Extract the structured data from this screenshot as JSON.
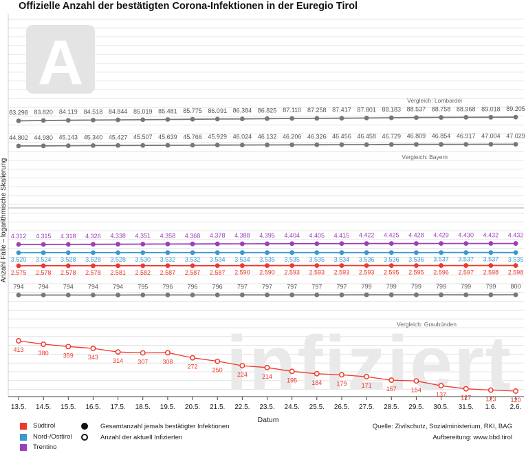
{
  "title": "Offizielle Anzahl der bestätigten Corona-Infektionen in der Euregio Tirol",
  "watermark_text": "infiziert",
  "logo_letter": "A",
  "legend": {
    "regions": [
      {
        "label": "Südtirol",
        "color": "#f0372c"
      },
      {
        "label": "Nord-/Osttirol",
        "color": "#3a97cf"
      },
      {
        "label": "Trentino",
        "color": "#9a3fb8"
      }
    ],
    "markers": [
      {
        "label": "Gesamtanzahl jemals bestätigter Infektionen"
      },
      {
        "label": "Anzahl der aktuell Infizierten"
      }
    ]
  },
  "source": {
    "line1": "Quelle: Zivilschutz, Sozialministerium, RKI, BAG",
    "line2": "Aufbereitung: www.bbd.tirol"
  },
  "chart_data": {
    "type": "line",
    "x": [
      "13.5.",
      "14.5.",
      "15.5.",
      "16.5.",
      "17.5.",
      "18.5.",
      "19.5.",
      "20.5.",
      "21.5.",
      "22.5.",
      "23.5.",
      "24.5.",
      "25.5.",
      "26.5.",
      "27.5.",
      "28.5.",
      "29.5.",
      "30.5.",
      "31.5.",
      "1.6.",
      "2.6."
    ],
    "xlabel": "Datum",
    "ylabel": "Anzahl Fälle – logarithmische Skalierung",
    "yscale": "log",
    "grid": true,
    "series": [
      {
        "name": "Vergleich: Lombardei",
        "color": "#777777",
        "marker": "filled",
        "labels": [
          "83.298",
          "83.820",
          "84.119",
          "84.518",
          "84.844",
          "85.019",
          "85.481",
          "85.775",
          "86.091",
          "86.384",
          "86.825",
          "87.110",
          "87.258",
          "87.417",
          "87.801",
          "88.183",
          "88.537",
          "88.758",
          "88.968",
          "89.018",
          "89.205"
        ],
        "values": [
          83298,
          83820,
          84119,
          84518,
          84844,
          85019,
          85481,
          85775,
          86091,
          86384,
          86825,
          87110,
          87258,
          87417,
          87801,
          88183,
          88537,
          88758,
          88968,
          89018,
          89205
        ]
      },
      {
        "name": "Vergleich: Bayern",
        "color": "#777777",
        "marker": "filled",
        "labels": [
          "44.802",
          "44.980",
          "45.143",
          "45.340",
          "45.427",
          "45.507",
          "45.639",
          "45.766",
          "45.929",
          "46.024",
          "46.132",
          "46.206",
          "46.326",
          "46.456",
          "46.458",
          "46.729",
          "46.809",
          "46.854",
          "46.917",
          "47.004",
          "47.029"
        ],
        "values": [
          44802,
          44980,
          45143,
          45340,
          45427,
          45507,
          45639,
          45766,
          45929,
          46024,
          46132,
          46206,
          46326,
          46456,
          46458,
          46729,
          46809,
          46854,
          46917,
          47004,
          47029
        ]
      },
      {
        "name": "Trentino",
        "color": "#9a3fb8",
        "marker": "filled",
        "labels": [
          "4.312",
          "4.315",
          "4.318",
          "4.326",
          "4.338",
          "4.351",
          "4.358",
          "4.368",
          "4.378",
          "4.388",
          "4.395",
          "4.404",
          "4.405",
          "4.415",
          "4.422",
          "4.425",
          "4.428",
          "4.429",
          "4.430",
          "4.432",
          "4.432"
        ],
        "values": [
          4312,
          4315,
          4318,
          4326,
          4338,
          4351,
          4358,
          4368,
          4378,
          4388,
          4395,
          4404,
          4405,
          4415,
          4422,
          4425,
          4428,
          4429,
          4430,
          4432,
          4432
        ]
      },
      {
        "name": "Nord-/Osttirol",
        "color": "#3a97cf",
        "marker": "filled",
        "labels": [
          "3.520",
          "3.524",
          "3.528",
          "3.528",
          "3.528",
          "3.530",
          "3.532",
          "3.532",
          "3.534",
          "3.534",
          "3.535",
          "3.535",
          "3.535",
          "3.534",
          "3.536",
          "3.536",
          "3.536",
          "3.537",
          "3.537",
          "3.537",
          "3.535"
        ],
        "values": [
          3520,
          3524,
          3528,
          3528,
          3528,
          3530,
          3532,
          3532,
          3534,
          3534,
          3535,
          3535,
          3535,
          3534,
          3536,
          3536,
          3536,
          3537,
          3537,
          3537,
          3535
        ]
      },
      {
        "name": "Südtirol",
        "color": "#f0372c",
        "marker": "filled",
        "labels": [
          "2.575",
          "2.578",
          "2.578",
          "2.578",
          "2.581",
          "2.582",
          "2.587",
          "2.587",
          "2.587",
          "2.590",
          "2.590",
          "2.593",
          "2.593",
          "2.593",
          "2.593",
          "2.595",
          "2.595",
          "2.596",
          "2.597",
          "2.598",
          "2.598"
        ],
        "values": [
          2575,
          2578,
          2578,
          2578,
          2581,
          2582,
          2587,
          2587,
          2587,
          2590,
          2590,
          2593,
          2593,
          2593,
          2593,
          2595,
          2595,
          2596,
          2597,
          2598,
          2598
        ]
      },
      {
        "name": "Vergleich: Graubünden",
        "color": "#777777",
        "marker": "filled",
        "labels": [
          "794",
          "794",
          "794",
          "794",
          "794",
          "795",
          "796",
          "796",
          "796",
          "797",
          "797",
          "797",
          "797",
          "797",
          "799",
          "799",
          "799",
          "799",
          "799",
          "799",
          "800"
        ],
        "values": [
          794,
          794,
          794,
          794,
          794,
          795,
          796,
          796,
          796,
          797,
          797,
          797,
          797,
          797,
          799,
          799,
          799,
          799,
          799,
          799,
          800
        ]
      },
      {
        "name": "Südtirol",
        "color": "#f0372c",
        "marker": "open",
        "labels": [
          "413",
          "380",
          "359",
          "343",
          "314",
          "307",
          "308",
          "272",
          "250",
          "224",
          "214",
          "195",
          "184",
          "179",
          "171",
          "157",
          "154",
          "137",
          "127",
          "123",
          "120"
        ],
        "values": [
          413,
          380,
          359,
          343,
          314,
          307,
          308,
          272,
          250,
          224,
          214,
          195,
          184,
          179,
          171,
          157,
          154,
          137,
          127,
          123,
          120
        ]
      }
    ]
  }
}
